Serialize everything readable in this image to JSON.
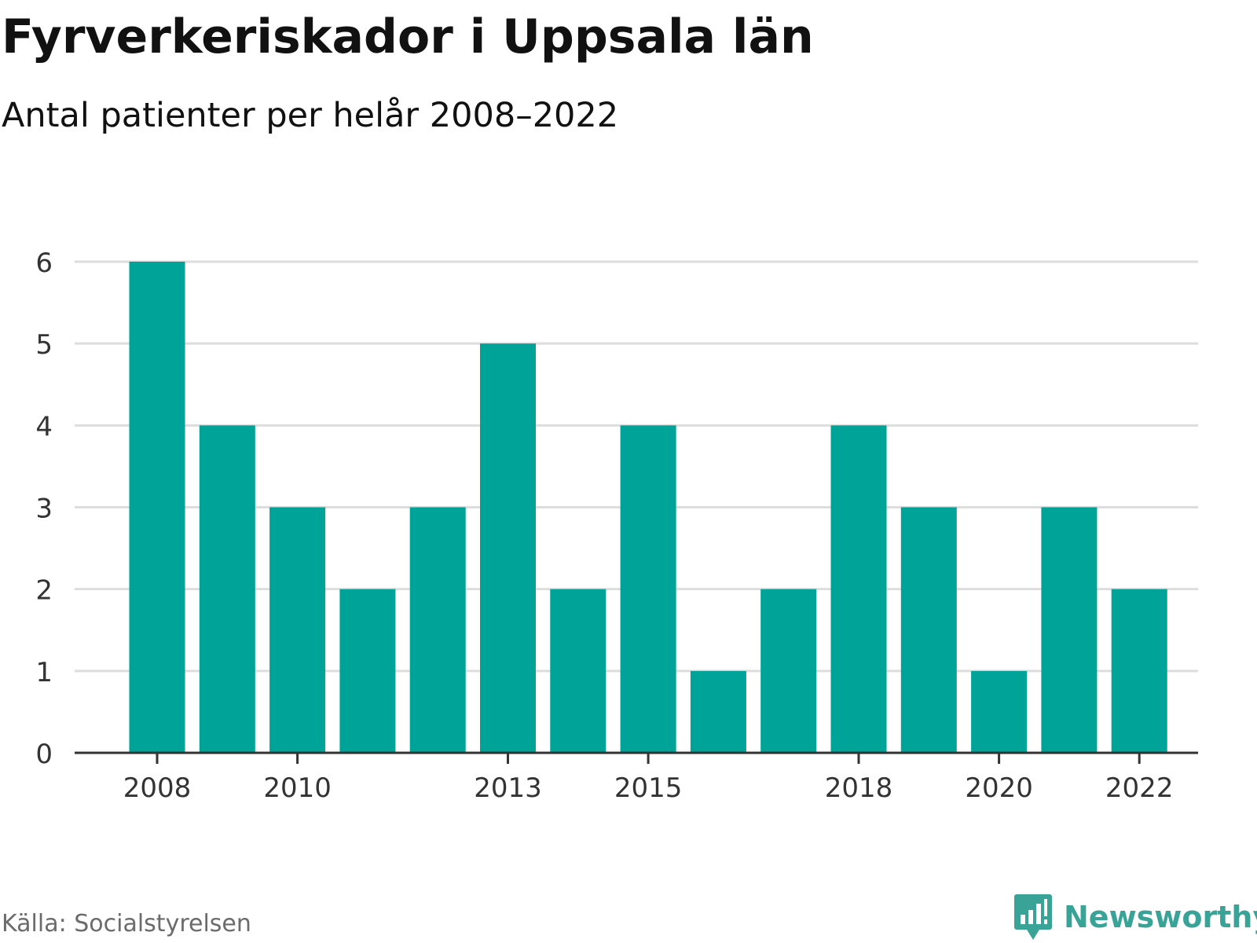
{
  "header": {
    "title": "Fyrverkeriskador i Uppsala län",
    "subtitle": "Antal patienter per helår 2008–2022"
  },
  "footer": {
    "source": "Källa: Socialstyrelsen",
    "brand_name": "Newsworthy",
    "brand_icon": "newsworthy-logo-icon"
  },
  "colors": {
    "bar": "#00A398",
    "grid": "#dddddd",
    "axis": "#333333",
    "brand": "#3aa397"
  },
  "chart_data": {
    "type": "bar",
    "categories": [
      "2008",
      "2009",
      "2010",
      "2011",
      "2012",
      "2013",
      "2014",
      "2015",
      "2016",
      "2017",
      "2018",
      "2019",
      "2020",
      "2021",
      "2022"
    ],
    "values": [
      6,
      4,
      3,
      2,
      3,
      5,
      2,
      4,
      1,
      2,
      4,
      3,
      1,
      3,
      2
    ],
    "x_tick_labels": [
      "2008",
      "2010",
      "2013",
      "2015",
      "2018",
      "2020",
      "2022"
    ],
    "y_ticks": [
      0,
      1,
      2,
      3,
      4,
      5,
      6
    ],
    "ylim": [
      0,
      6
    ],
    "grid": true,
    "legend": "none"
  }
}
